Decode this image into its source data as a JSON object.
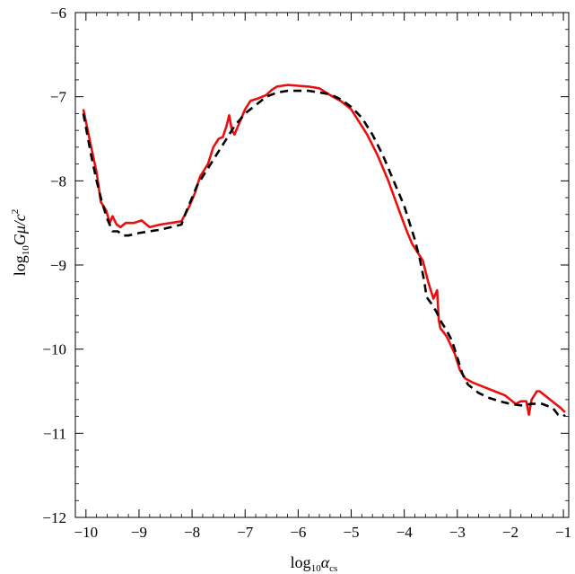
{
  "chart_data": {
    "type": "line",
    "title": "",
    "xlabel": {
      "main": "log",
      "sub": "10",
      "sym": "α",
      "symsub": "cs"
    },
    "ylabel": {
      "main": "log",
      "sub": "10",
      "sym": "Gμ/c",
      "sup": "2"
    },
    "xlim": [
      -10.2,
      -0.9
    ],
    "ylim": [
      -12,
      -6
    ],
    "x_ticks": [
      -10,
      -9,
      -8,
      -7,
      -6,
      -5,
      -4,
      -3,
      -2,
      -1
    ],
    "x_tick_labels": [
      "−10",
      "−9",
      "−8",
      "−7",
      "−6",
      "−5",
      "−4",
      "−3",
      "−2",
      "−1"
    ],
    "y_ticks": [
      -12,
      -11,
      -10,
      -9,
      -8,
      -7,
      -6
    ],
    "y_tick_labels": [
      "−12",
      "−11",
      "−10",
      "−9",
      "−8",
      "−7",
      "−6"
    ],
    "grid": false,
    "series": [
      {
        "color": "#e8100f",
        "style": "solid",
        "x": [
          -10.05,
          -9.9,
          -9.8,
          -9.72,
          -9.62,
          -9.55,
          -9.5,
          -9.42,
          -9.35,
          -9.25,
          -9.1,
          -8.95,
          -8.8,
          -8.6,
          -8.4,
          -8.2,
          -8.05,
          -7.95,
          -7.85,
          -7.8,
          -7.7,
          -7.6,
          -7.5,
          -7.42,
          -7.35,
          -7.3,
          -7.25,
          -7.2,
          -7.1,
          -7.0,
          -6.9,
          -6.75,
          -6.6,
          -6.5,
          -6.4,
          -6.2,
          -6.0,
          -5.8,
          -5.6,
          -5.4,
          -5.2,
          -5.0,
          -4.85,
          -4.7,
          -4.5,
          -4.3,
          -4.1,
          -3.95,
          -3.85,
          -3.75,
          -3.65,
          -3.55,
          -3.45,
          -3.38,
          -3.35,
          -3.32,
          -3.2,
          -3.05,
          -3.0,
          -2.95,
          -2.85,
          -2.7,
          -2.5,
          -2.3,
          -2.1,
          -2.0,
          -1.9,
          -1.8,
          -1.7,
          -1.65,
          -1.6,
          -1.55,
          -1.5,
          -1.45,
          -1.35,
          -1.25,
          -1.15,
          -1.05,
          -0.97
        ],
        "y": [
          -7.15,
          -7.6,
          -7.9,
          -8.25,
          -8.35,
          -8.5,
          -8.42,
          -8.52,
          -8.55,
          -8.5,
          -8.5,
          -8.47,
          -8.55,
          -8.52,
          -8.5,
          -8.48,
          -8.3,
          -8.15,
          -7.95,
          -7.9,
          -7.8,
          -7.6,
          -7.5,
          -7.48,
          -7.35,
          -7.22,
          -7.4,
          -7.45,
          -7.3,
          -7.15,
          -7.05,
          -7.02,
          -6.98,
          -6.92,
          -6.88,
          -6.86,
          -6.87,
          -6.88,
          -6.9,
          -6.98,
          -7.05,
          -7.15,
          -7.3,
          -7.45,
          -7.7,
          -8.0,
          -8.35,
          -8.6,
          -8.75,
          -8.85,
          -8.95,
          -9.2,
          -9.4,
          -9.3,
          -9.65,
          -9.75,
          -9.85,
          -10.05,
          -10.15,
          -10.25,
          -10.35,
          -10.4,
          -10.45,
          -10.5,
          -10.55,
          -10.6,
          -10.65,
          -10.62,
          -10.62,
          -10.78,
          -10.6,
          -10.55,
          -10.5,
          -10.5,
          -10.55,
          -10.6,
          -10.65,
          -10.7,
          -10.75
        ]
      },
      {
        "color": "#000000",
        "style": "dashed",
        "x": [
          -10.05,
          -9.9,
          -9.8,
          -9.7,
          -9.6,
          -9.5,
          -9.4,
          -9.3,
          -9.2,
          -9.0,
          -8.8,
          -8.6,
          -8.4,
          -8.2,
          -8.1,
          -8.0,
          -7.9,
          -7.8,
          -7.6,
          -7.4,
          -7.2,
          -7.0,
          -6.8,
          -6.6,
          -6.4,
          -6.2,
          -6.0,
          -5.8,
          -5.6,
          -5.4,
          -5.2,
          -5.0,
          -4.8,
          -4.6,
          -4.4,
          -4.2,
          -4.0,
          -3.9,
          -3.8,
          -3.7,
          -3.62,
          -3.58,
          -3.5,
          -3.4,
          -3.3,
          -3.2,
          -3.1,
          -3.0,
          -2.9,
          -2.8,
          -2.6,
          -2.4,
          -2.2,
          -2.0,
          -1.8,
          -1.6,
          -1.4,
          -1.2,
          -1.1,
          -1.0,
          -0.97
        ],
        "y": [
          -7.2,
          -7.7,
          -8.0,
          -8.25,
          -8.45,
          -8.6,
          -8.6,
          -8.65,
          -8.65,
          -8.62,
          -8.6,
          -8.58,
          -8.55,
          -8.52,
          -8.35,
          -8.2,
          -8.05,
          -7.95,
          -7.75,
          -7.55,
          -7.35,
          -7.2,
          -7.1,
          -7.0,
          -6.95,
          -6.93,
          -6.93,
          -6.93,
          -6.95,
          -6.97,
          -7.03,
          -7.12,
          -7.25,
          -7.45,
          -7.7,
          -8.0,
          -8.3,
          -8.5,
          -8.7,
          -8.95,
          -9.2,
          -9.38,
          -9.45,
          -9.55,
          -9.68,
          -9.78,
          -9.9,
          -10.1,
          -10.3,
          -10.42,
          -10.52,
          -10.58,
          -10.62,
          -10.65,
          -10.67,
          -10.65,
          -10.65,
          -10.7,
          -10.78,
          -10.8,
          -10.78
        ]
      }
    ]
  }
}
